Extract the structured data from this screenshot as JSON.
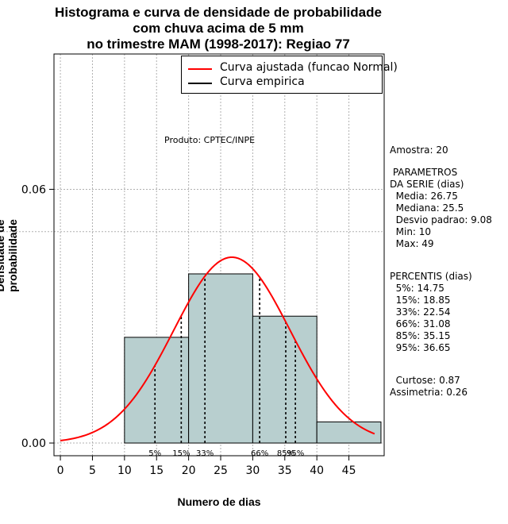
{
  "title": [
    "Histograma e curva de densidade de probabilidade",
    "com chuva acima de 5 mm",
    "no trimestre MAM (1998-2017): Regiao 77"
  ],
  "chart_data": {
    "type": "histogram",
    "xlabel": "Numero de dias",
    "ylabel": "Densidade de probabilidade",
    "xlim": [
      -1,
      50.5
    ],
    "ylim": [
      -0.003,
      0.092
    ],
    "x_ticks": [
      0,
      5,
      10,
      15,
      20,
      25,
      30,
      35,
      40,
      45
    ],
    "y_ticks": [
      0.0,
      0.06
    ],
    "y_tick_labels": [
      "0.00",
      "0.06"
    ],
    "bins": [
      {
        "from": 10,
        "to": 20,
        "density": 0.025
      },
      {
        "from": 20,
        "to": 30,
        "density": 0.04
      },
      {
        "from": 30,
        "to": 40,
        "density": 0.03
      },
      {
        "from": 40,
        "to": 50,
        "density": 0.005
      }
    ],
    "fitted_curve": {
      "name": "Curva ajustada (funcao Normal)",
      "distribution": "normal",
      "mean": 26.75,
      "sd": 9.08,
      "x_range": [
        0,
        49
      ],
      "color": "#ff0000"
    },
    "empirical_curve": {
      "name": "Curva empirica",
      "color": "#000000"
    },
    "extra_gridline_y": 0.05,
    "percentile_lines": [
      {
        "label": "5%",
        "x": 14.75
      },
      {
        "label": "15%",
        "x": 18.85
      },
      {
        "label": "33%",
        "x": 22.54
      },
      {
        "label": "66%",
        "x": 31.08
      },
      {
        "label": "85%",
        "x": 35.15
      },
      {
        "label": "95%",
        "x": 36.65
      }
    ],
    "bar_color": "#b8cfcf"
  },
  "legend": [
    {
      "label": "Curva ajustada (funcao Normal)",
      "color": "#ff0000"
    },
    {
      "label": "Curva empirica",
      "color": "#000000"
    }
  ],
  "produto": "Produto: CPTEC/INPE",
  "stats": {
    "amostra": "Amostra: 20",
    "param_header": [
      " PARAMETROS",
      "DA SERIE (dias)"
    ],
    "params": [
      "  Media: 26.75",
      "  Mediana: 25.5",
      "  Desvio padrao: 9.08",
      "  Min: 10",
      "  Max: 49"
    ],
    "perc_header": "PERCENTIS (dias)",
    "percentis": [
      "  5%: 14.75",
      "  15%: 18.85",
      "  33%: 22.54",
      "  66%: 31.08",
      "  85%: 35.15",
      "  95%: 36.65"
    ],
    "curtose": "  Curtose: 0.87",
    "assimetria": "Assimetria: 0.26"
  }
}
